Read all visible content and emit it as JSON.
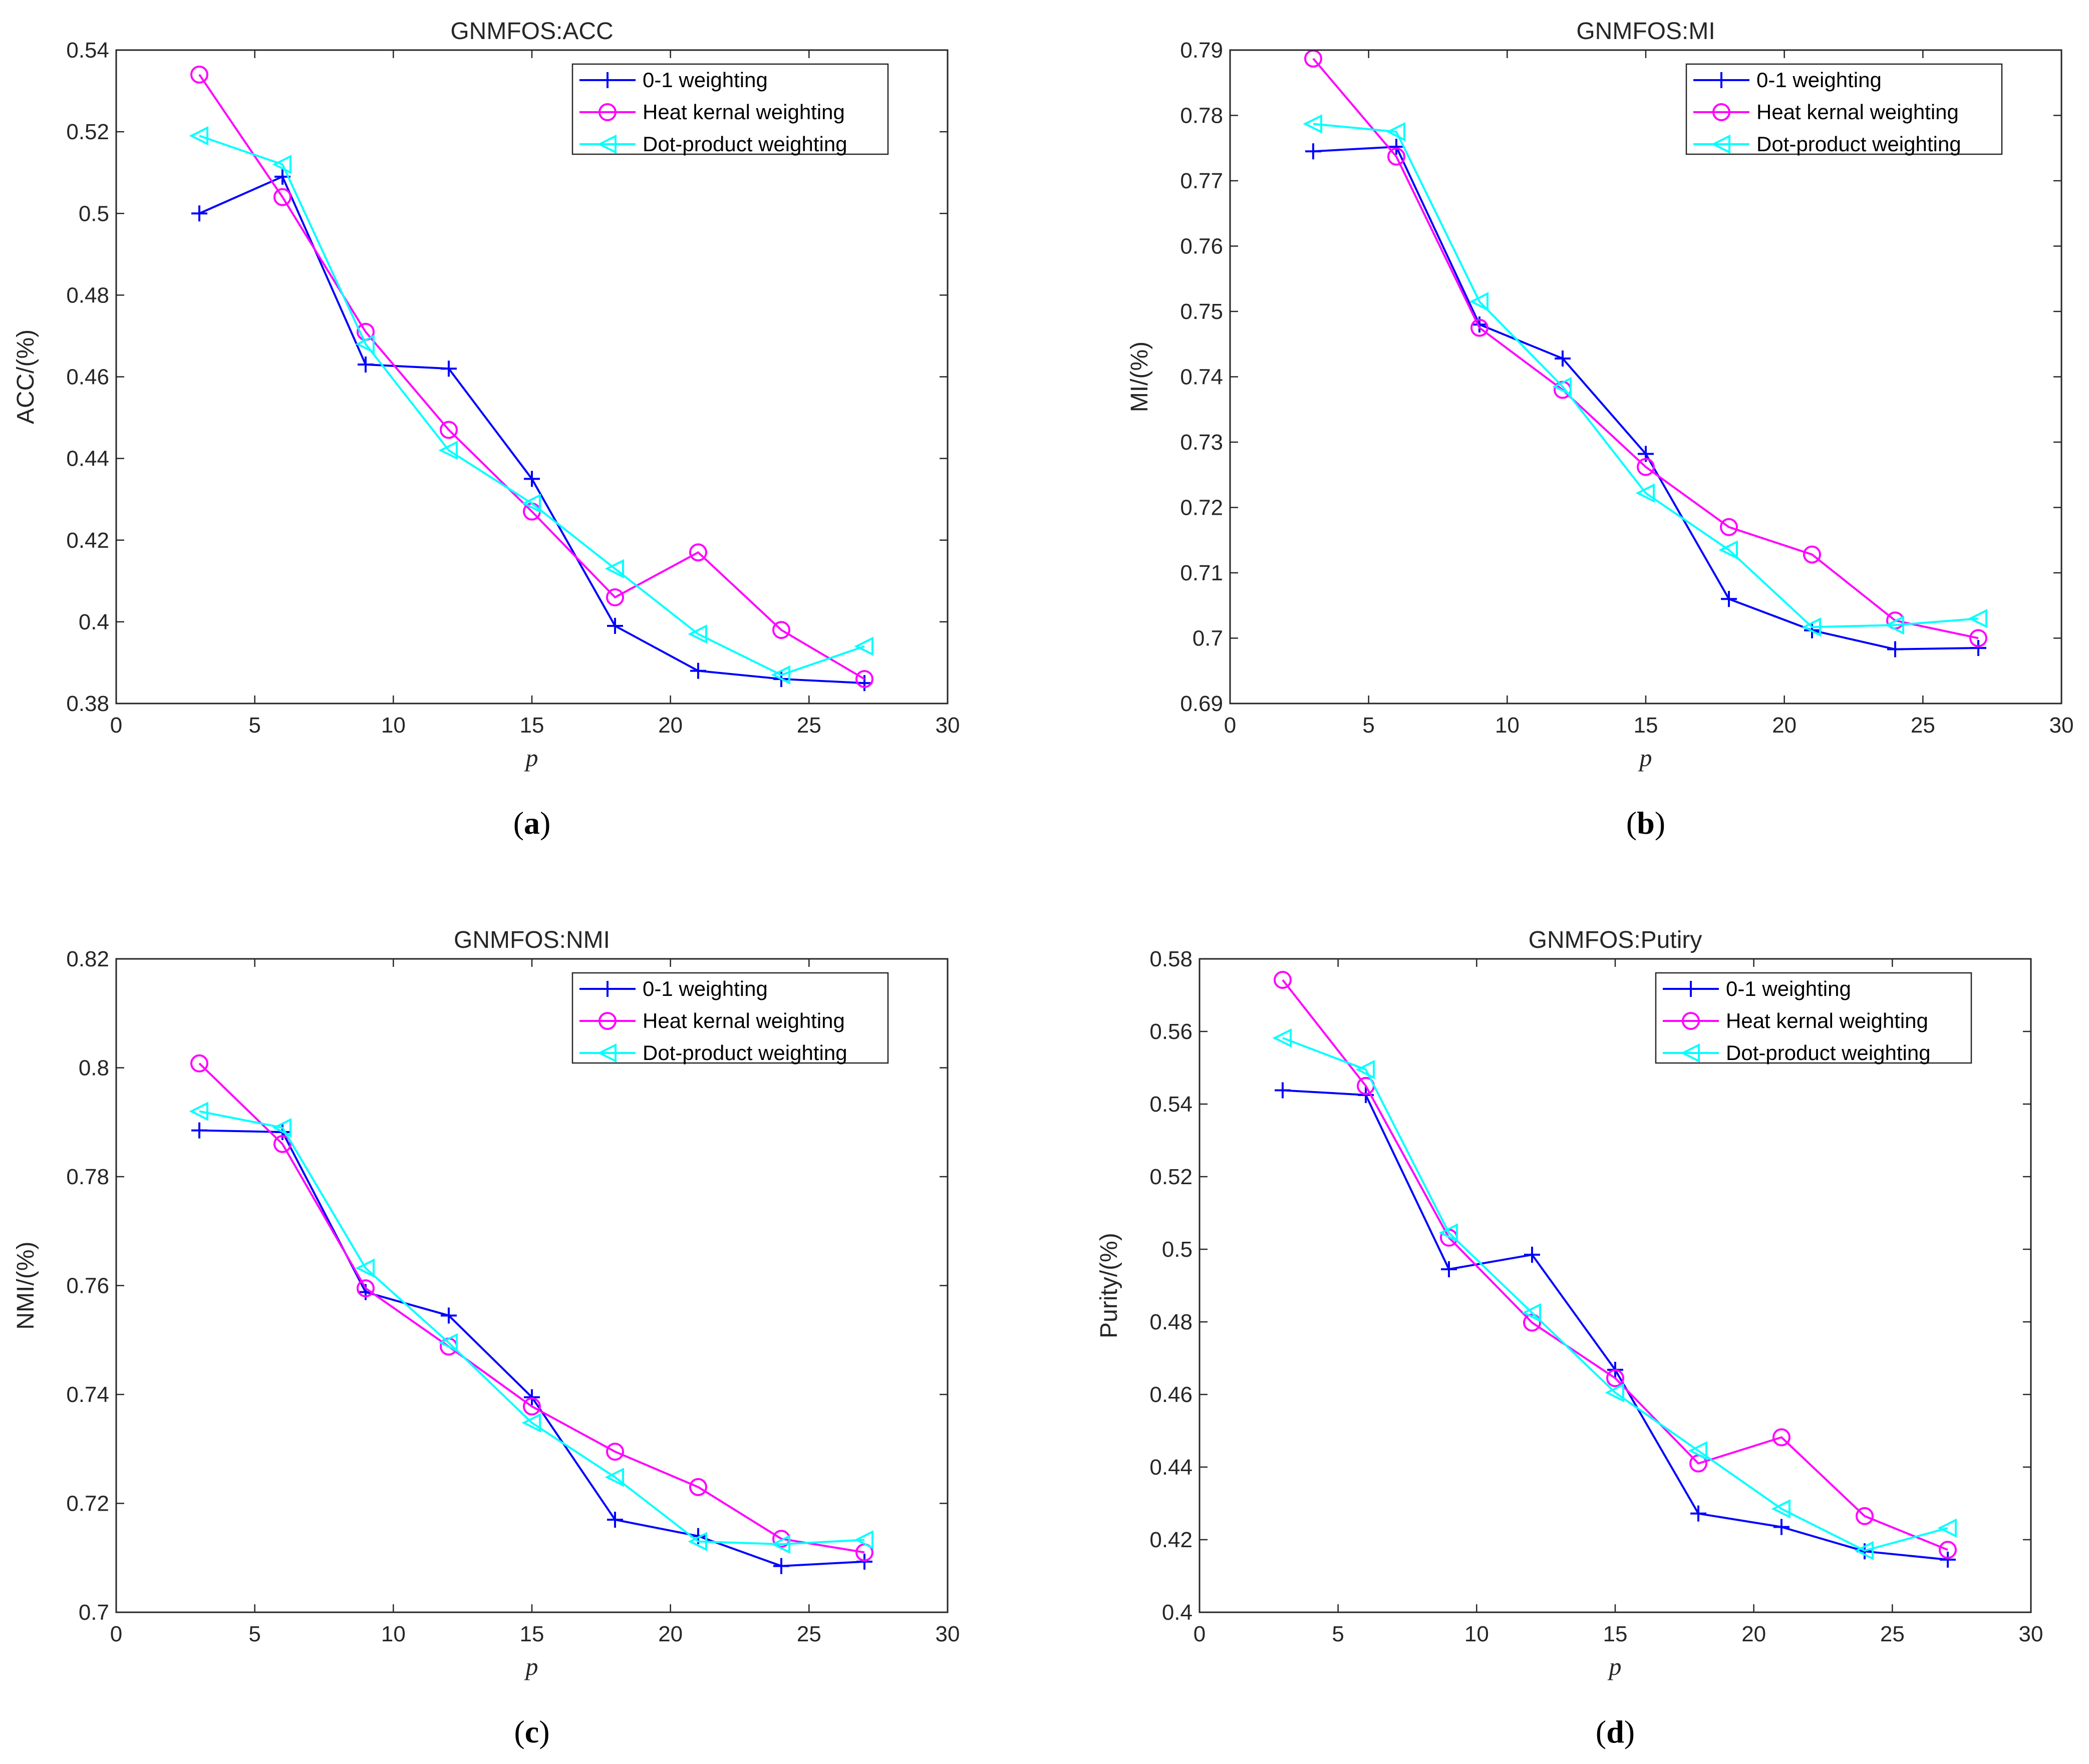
{
  "chart_data": [
    {
      "type": "line",
      "panel_label": "a",
      "title": "GNMFOS:ACC",
      "xlabel": "p",
      "ylabel": "ACC/(%)",
      "xlim": [
        0,
        30
      ],
      "ylim": [
        0.38,
        0.54
      ],
      "xticks": [
        0,
        5,
        10,
        15,
        20,
        25,
        30
      ],
      "xtick_labels": [
        "0",
        "5",
        "10",
        "15",
        "20",
        "25",
        "30"
      ],
      "yticks": [
        0.38,
        0.4,
        0.42,
        0.44,
        0.46,
        0.48,
        0.5,
        0.52,
        0.54
      ],
      "ytick_labels": [
        "0.38",
        "0.4",
        "0.42",
        "0.44",
        "0.46",
        "0.48",
        "0.5",
        "0.52",
        "0.54"
      ],
      "legend_position": "top-right",
      "x": [
        3,
        6,
        9,
        12,
        15,
        18,
        21,
        24,
        27
      ],
      "series": [
        {
          "name": "0-1 weighting",
          "color": "#0000ff",
          "marker": "plus",
          "values": [
            0.5,
            0.509,
            0.463,
            0.462,
            0.435,
            0.399,
            0.388,
            0.386,
            0.385
          ]
        },
        {
          "name": "Heat kernal weighting",
          "color": "#ff00ff",
          "marker": "circle",
          "values": [
            0.534,
            0.504,
            0.471,
            0.447,
            0.427,
            0.406,
            0.417,
            0.398,
            0.386
          ]
        },
        {
          "name": "Dot-product weighting",
          "color": "#00ffff",
          "marker": "triangle-left",
          "values": [
            0.519,
            0.512,
            0.468,
            0.442,
            0.429,
            0.413,
            0.397,
            0.387,
            0.394
          ]
        }
      ]
    },
    {
      "type": "line",
      "panel_label": "b",
      "title": "GNMFOS:MI",
      "xlabel": "p",
      "ylabel": "MI/(%)",
      "xlim": [
        0,
        30
      ],
      "ylim": [
        0.69,
        0.79
      ],
      "xticks": [
        0,
        5,
        10,
        15,
        20,
        25,
        30
      ],
      "xtick_labels": [
        "0",
        "5",
        "10",
        "15",
        "20",
        "25",
        "30"
      ],
      "yticks": [
        0.69,
        0.7,
        0.71,
        0.72,
        0.73,
        0.74,
        0.75,
        0.76,
        0.77,
        0.78,
        0.79
      ],
      "ytick_labels": [
        "0.69",
        "0.7",
        "0.71",
        "0.72",
        "0.73",
        "0.74",
        "0.75",
        "0.76",
        "0.77",
        "0.78",
        "0.79"
      ],
      "legend_position": "top-right",
      "x": [
        3,
        6,
        9,
        12,
        15,
        18,
        21,
        24,
        27
      ],
      "series": [
        {
          "name": "0-1 weighting",
          "color": "#0000ff",
          "marker": "plus",
          "values": [
            0.7745,
            0.7752,
            0.748,
            0.7428,
            0.7282,
            0.706,
            0.7012,
            0.6983,
            0.6985
          ]
        },
        {
          "name": "Heat kernal weighting",
          "color": "#ff00ff",
          "marker": "circle",
          "values": [
            0.7887,
            0.7737,
            0.7475,
            0.738,
            0.7262,
            0.717,
            0.7128,
            0.7027,
            0.7
          ]
        },
        {
          "name": "Dot-product weighting",
          "color": "#00ffff",
          "marker": "triangle-left",
          "values": [
            0.7787,
            0.7775,
            0.7515,
            0.7385,
            0.7222,
            0.7135,
            0.7017,
            0.702,
            0.703
          ]
        }
      ]
    },
    {
      "type": "line",
      "panel_label": "c",
      "title": "GNMFOS:NMI",
      "xlabel": "p",
      "ylabel": "NMI/(%)",
      "xlim": [
        0,
        30
      ],
      "ylim": [
        0.7,
        0.82
      ],
      "xticks": [
        0,
        5,
        10,
        15,
        20,
        25,
        30
      ],
      "xtick_labels": [
        "0",
        "5",
        "10",
        "15",
        "20",
        "25",
        "30"
      ],
      "yticks": [
        0.7,
        0.72,
        0.74,
        0.76,
        0.78,
        0.8,
        0.82
      ],
      "ytick_labels": [
        "0.7",
        "0.72",
        "0.74",
        "0.76",
        "0.78",
        "0.8",
        "0.82"
      ],
      "legend_position": "top-right",
      "x": [
        3,
        6,
        9,
        12,
        15,
        18,
        21,
        24,
        27
      ],
      "series": [
        {
          "name": "0-1 weighting",
          "color": "#0000ff",
          "marker": "plus",
          "values": [
            0.7885,
            0.7882,
            0.7588,
            0.7545,
            0.7395,
            0.717,
            0.714,
            0.7085,
            0.7093
          ]
        },
        {
          "name": "Heat kernal weighting",
          "color": "#ff00ff",
          "marker": "circle",
          "values": [
            0.8008,
            0.786,
            0.7595,
            0.7488,
            0.7378,
            0.7295,
            0.723,
            0.7135,
            0.711
          ]
        },
        {
          "name": "Dot-product weighting",
          "color": "#00ffff",
          "marker": "triangle-left",
          "values": [
            0.792,
            0.789,
            0.7632,
            0.7495,
            0.7348,
            0.7248,
            0.713,
            0.7125,
            0.7133
          ]
        }
      ]
    },
    {
      "type": "line",
      "panel_label": "d",
      "title": "GNMFOS:Putiry",
      "xlabel": "p",
      "ylabel": "Purity/(%)",
      "xlim": [
        0,
        30
      ],
      "ylim": [
        0.4,
        0.58
      ],
      "xticks": [
        0,
        5,
        10,
        15,
        20,
        25,
        30
      ],
      "xtick_labels": [
        "0",
        "5",
        "10",
        "15",
        "20",
        "25",
        "30"
      ],
      "yticks": [
        0.4,
        0.42,
        0.44,
        0.46,
        0.48,
        0.5,
        0.52,
        0.54,
        0.56,
        0.58
      ],
      "ytick_labels": [
        "0.4",
        "0.42",
        "0.44",
        "0.46",
        "0.48",
        "0.5",
        "0.52",
        "0.54",
        "0.56",
        "0.58"
      ],
      "legend_position": "top-right",
      "x": [
        3,
        6,
        9,
        12,
        15,
        18,
        21,
        24,
        27
      ],
      "series": [
        {
          "name": "0-1 weighting",
          "color": "#0000ff",
          "marker": "plus",
          "values": [
            0.5438,
            0.5425,
            0.4945,
            0.4985,
            0.4668,
            0.4272,
            0.4235,
            0.4168,
            0.4145
          ]
        },
        {
          "name": "Heat kernal weighting",
          "color": "#ff00ff",
          "marker": "circle",
          "values": [
            0.5742,
            0.545,
            0.5032,
            0.4798,
            0.4645,
            0.441,
            0.4482,
            0.4265,
            0.4172
          ]
        },
        {
          "name": "Dot-product weighting",
          "color": "#00ffff",
          "marker": "triangle-left",
          "values": [
            0.5582,
            0.5495,
            0.5045,
            0.4825,
            0.4605,
            0.4445,
            0.4285,
            0.417,
            0.4232
          ]
        }
      ]
    }
  ]
}
